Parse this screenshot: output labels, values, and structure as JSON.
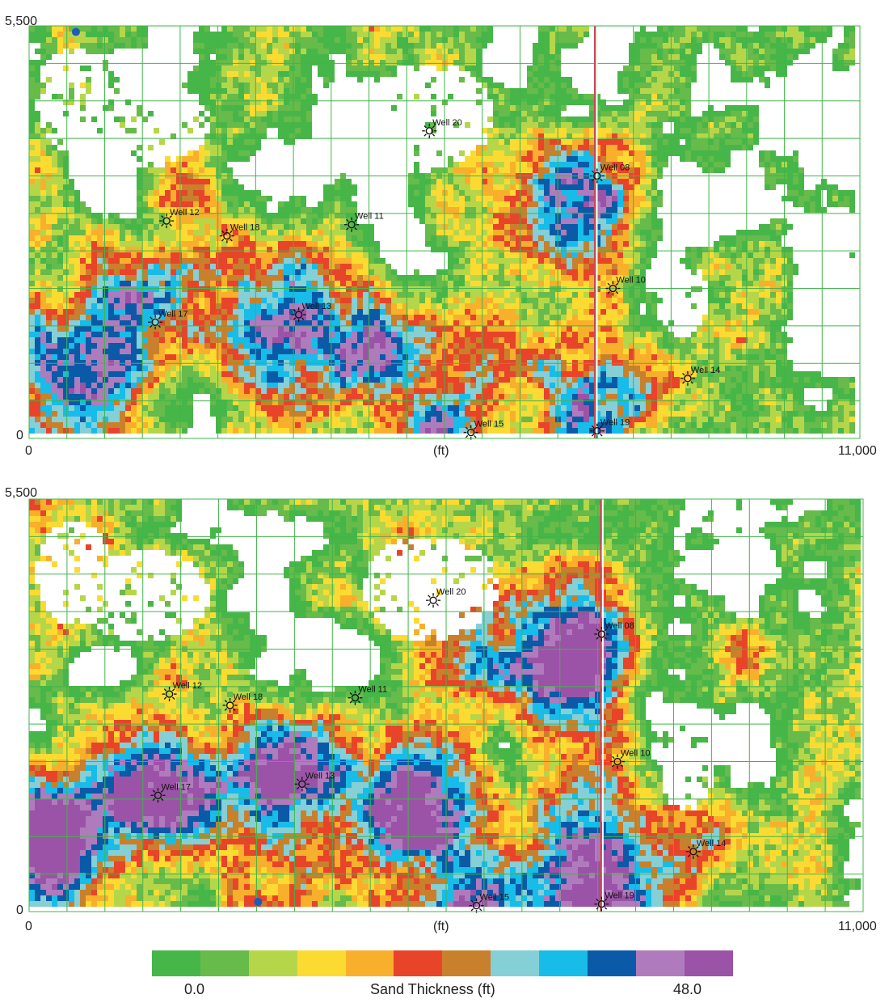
{
  "maps": [
    {
      "id": "top",
      "x_axis": {
        "min_label": "0",
        "max_label": "11,000",
        "unit_label": "(ft)"
      },
      "y_axis": {
        "min_label": "0",
        "max_label": "5,500"
      },
      "wells": [
        {
          "name": "Well 20",
          "x": 5300,
          "y": 4100
        },
        {
          "name": "Well 08",
          "x": 7520,
          "y": 3500
        },
        {
          "name": "Well 12",
          "x": 1820,
          "y": 2900
        },
        {
          "name": "Well 18",
          "x": 2620,
          "y": 2700
        },
        {
          "name": "Well 11",
          "x": 4270,
          "y": 2850
        },
        {
          "name": "Well 10",
          "x": 7730,
          "y": 2000
        },
        {
          "name": "Well 13",
          "x": 3570,
          "y": 1650
        },
        {
          "name": "Well 17",
          "x": 1670,
          "y": 1550
        },
        {
          "name": "Well 14",
          "x": 8720,
          "y": 800
        },
        {
          "name": "Well 15",
          "x": 5850,
          "y": 80
        },
        {
          "name": "Well 19",
          "x": 7520,
          "y": 100
        }
      ],
      "marker_dot": {
        "x": 620,
        "y": 5420,
        "color": "#1f5bb8"
      },
      "section_line_x": 7490
    },
    {
      "id": "bottom",
      "x_axis": {
        "min_label": "0",
        "max_label": "11,000",
        "unit_label": "(ft)"
      },
      "y_axis": {
        "min_label": "0",
        "max_label": "5,500"
      },
      "wells": [
        {
          "name": "Well 20",
          "x": 5330,
          "y": 4150
        },
        {
          "name": "Well 08",
          "x": 7550,
          "y": 3700
        },
        {
          "name": "Well 12",
          "x": 1850,
          "y": 2900
        },
        {
          "name": "Well 18",
          "x": 2650,
          "y": 2750
        },
        {
          "name": "Well 11",
          "x": 4300,
          "y": 2850
        },
        {
          "name": "Well 10",
          "x": 7760,
          "y": 2000
        },
        {
          "name": "Well 13",
          "x": 3600,
          "y": 1700
        },
        {
          "name": "Well 17",
          "x": 1700,
          "y": 1550
        },
        {
          "name": "Well 14",
          "x": 8760,
          "y": 800
        },
        {
          "name": "Well 15",
          "x": 5900,
          "y": 80
        },
        {
          "name": "Well 19",
          "x": 7550,
          "y": 100
        }
      ],
      "marker_dot": {
        "x": 3020,
        "y": 130,
        "color": "#1f5bb8"
      },
      "section_line_x": 7540
    }
  ],
  "legend": {
    "title": "Sand Thickness (ft)",
    "min_label": "0.0",
    "max_label": "48.0",
    "colors": [
      "#47b649",
      "#66bb4a",
      "#b6d64a",
      "#fbdb32",
      "#f8b02c",
      "#e8442a",
      "#c9802c",
      "#85cfd6",
      "#18bce8",
      "#0b5aa8",
      "#b07bbd",
      "#9b53a7"
    ]
  },
  "colors": {
    "grid": "#41b549",
    "section_line": "#c9475a",
    "background": "#ffffff"
  }
}
